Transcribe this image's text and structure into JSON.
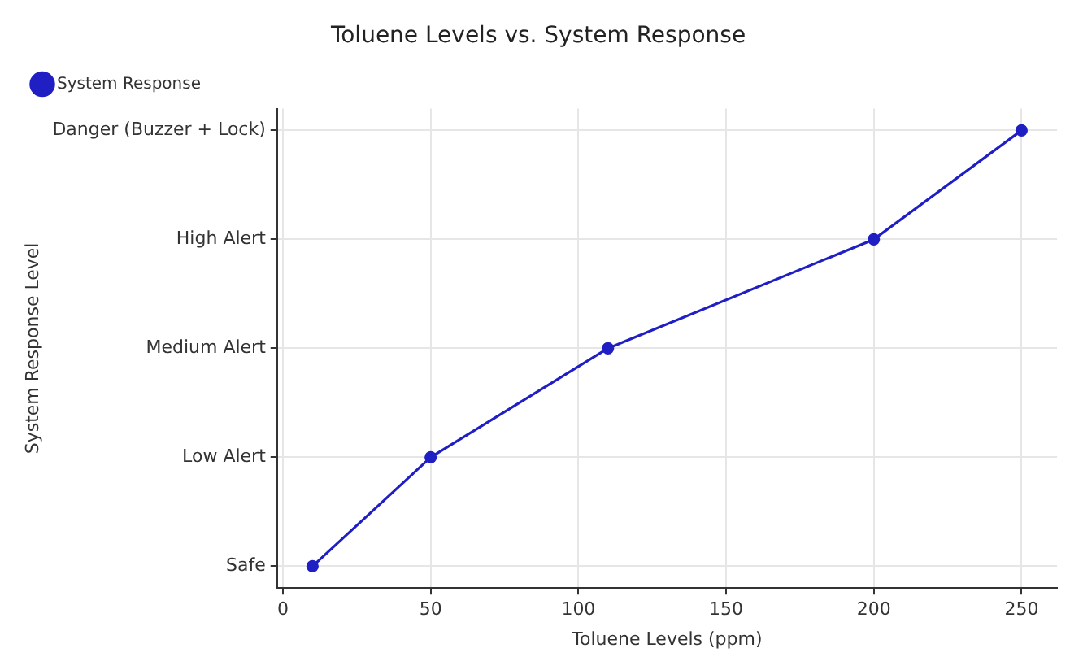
{
  "chart_data": {
    "type": "line",
    "orientation": "horizontal",
    "title": "Toluene Levels vs. System Response",
    "xlabel": "Toluene Levels (ppm)",
    "ylabel": "System Response Level",
    "categories": [
      "Danger (Buzzer + Lock)",
      "High Alert",
      "Medium Alert",
      "Low Alert",
      "Safe"
    ],
    "series": [
      {
        "name": "System Response",
        "color": "#1f1fc4",
        "values": [
          250,
          200,
          110,
          50,
          10
        ]
      }
    ],
    "xlim": [
      -2,
      262
    ],
    "xticks": [
      0,
      50,
      100,
      150,
      200,
      250
    ],
    "grid": true,
    "legend": "top left",
    "marker": "circle",
    "line_style": "solid"
  }
}
